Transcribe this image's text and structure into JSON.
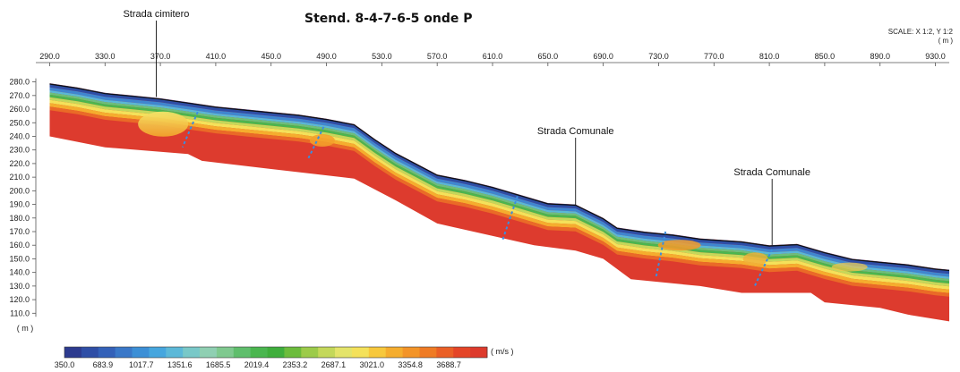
{
  "chart_data": {
    "type": "heatmap",
    "title": "Stend. 8-4-7-6-5 onde P",
    "scale_text": "SCALE: X 1:2, Y 1:2",
    "x_unit": "( m )",
    "y_unit": "( m )",
    "colorbar_unit": "( m/s )",
    "x_ticks": [
      290.0,
      330.0,
      370.0,
      410.0,
      450.0,
      490.0,
      530.0,
      570.0,
      610.0,
      650.0,
      690.0,
      730.0,
      770.0,
      810.0,
      850.0,
      890.0,
      930.0
    ],
    "x_tick_labels": [
      "290.0",
      "330.0",
      "370.0",
      "410.0",
      "450.0",
      "490.0",
      "530.0",
      "570.0",
      "610.0",
      "650.0",
      "690.0",
      "730.0",
      "770.0",
      "810.0",
      "850.0",
      "890.0",
      "930.0"
    ],
    "y_ticks": [
      280,
      270,
      260,
      250,
      240,
      230,
      220,
      210,
      200,
      190,
      180,
      170,
      160,
      150,
      140,
      130,
      120,
      110
    ],
    "y_tick_labels": [
      "280.0",
      "270.0",
      "260.0",
      "250.0",
      "240.0",
      "230.0",
      "220.0",
      "210.0",
      "200.0",
      "190.0",
      "180.0",
      "170.0",
      "160.0",
      "150.0",
      "140.0",
      "130.0",
      "120.0",
      "110.0"
    ],
    "xlim": [
      280,
      940
    ],
    "ylim": [
      101,
      285
    ],
    "colorbar_labels": [
      "350.0",
      "683.9",
      "1017.7",
      "1351.6",
      "1685.5",
      "2019.4",
      "2353.2",
      "2687.1",
      "3021.0",
      "3354.8",
      "3688.7"
    ],
    "colorbar_range": [
      350.0,
      4022.6
    ],
    "colorbar_colors": [
      "#2d3b8f",
      "#2f4ea6",
      "#3461b8",
      "#3a78c8",
      "#3c8fd6",
      "#46a6de",
      "#5cb8d8",
      "#79c8c8",
      "#8fcfb2",
      "#7fc98f",
      "#5fbe6c",
      "#4ab64f",
      "#3fae3c",
      "#6cbc3c",
      "#9ccb4a",
      "#c4d85a",
      "#e4e46a",
      "#f4e15a",
      "#f7c83c",
      "#f5ad2e",
      "#f39428",
      "#ef7b25",
      "#ea5f26",
      "#e44527",
      "#dd3a2c"
    ],
    "surface": [
      [
        290,
        279
      ],
      [
        310,
        276
      ],
      [
        330,
        272
      ],
      [
        350,
        270
      ],
      [
        370,
        268
      ],
      [
        390,
        265
      ],
      [
        410,
        262
      ],
      [
        430,
        260
      ],
      [
        450,
        258
      ],
      [
        470,
        256
      ],
      [
        490,
        253
      ],
      [
        510,
        249
      ],
      [
        525,
        238
      ],
      [
        540,
        228
      ],
      [
        555,
        220
      ],
      [
        570,
        212
      ],
      [
        590,
        208
      ],
      [
        610,
        203
      ],
      [
        630,
        197
      ],
      [
        650,
        191
      ],
      [
        670,
        190
      ],
      [
        690,
        180
      ],
      [
        700,
        173
      ],
      [
        720,
        170
      ],
      [
        740,
        168
      ],
      [
        760,
        165
      ],
      [
        790,
        163
      ],
      [
        810,
        160
      ],
      [
        830,
        161
      ],
      [
        850,
        155
      ],
      [
        870,
        150
      ],
      [
        890,
        148
      ],
      [
        910,
        146
      ],
      [
        930,
        143
      ],
      [
        940,
        142
      ]
    ],
    "bottom": [
      [
        290,
        240
      ],
      [
        330,
        232
      ],
      [
        390,
        227
      ],
      [
        400,
        222
      ],
      [
        450,
        216
      ],
      [
        510,
        209
      ],
      [
        540,
        193
      ],
      [
        570,
        176
      ],
      [
        640,
        160
      ],
      [
        670,
        156
      ],
      [
        690,
        150
      ],
      [
        710,
        135
      ],
      [
        760,
        130
      ],
      [
        790,
        125
      ],
      [
        840,
        125
      ],
      [
        850,
        118
      ],
      [
        890,
        114
      ],
      [
        910,
        109
      ],
      [
        940,
        104
      ]
    ],
    "fractures": [
      [
        [
          397,
          258
        ],
        [
          386,
          232
        ]
      ],
      [
        [
          488,
          247
        ],
        [
          477,
          224
        ]
      ],
      [
        [
          628,
          196
        ],
        [
          617,
          163
        ]
      ],
      [
        [
          735,
          170
        ],
        [
          728,
          136
        ]
      ],
      [
        [
          812,
          157
        ],
        [
          799,
          129
        ]
      ]
    ],
    "annotations": [
      {
        "text": "Strada cimitero",
        "x": 367,
        "y": 269
      },
      {
        "text": "Strada Comunale",
        "x": 670,
        "y": 189
      },
      {
        "text": "Strada Comunale",
        "x": 812,
        "y": 160
      }
    ]
  }
}
